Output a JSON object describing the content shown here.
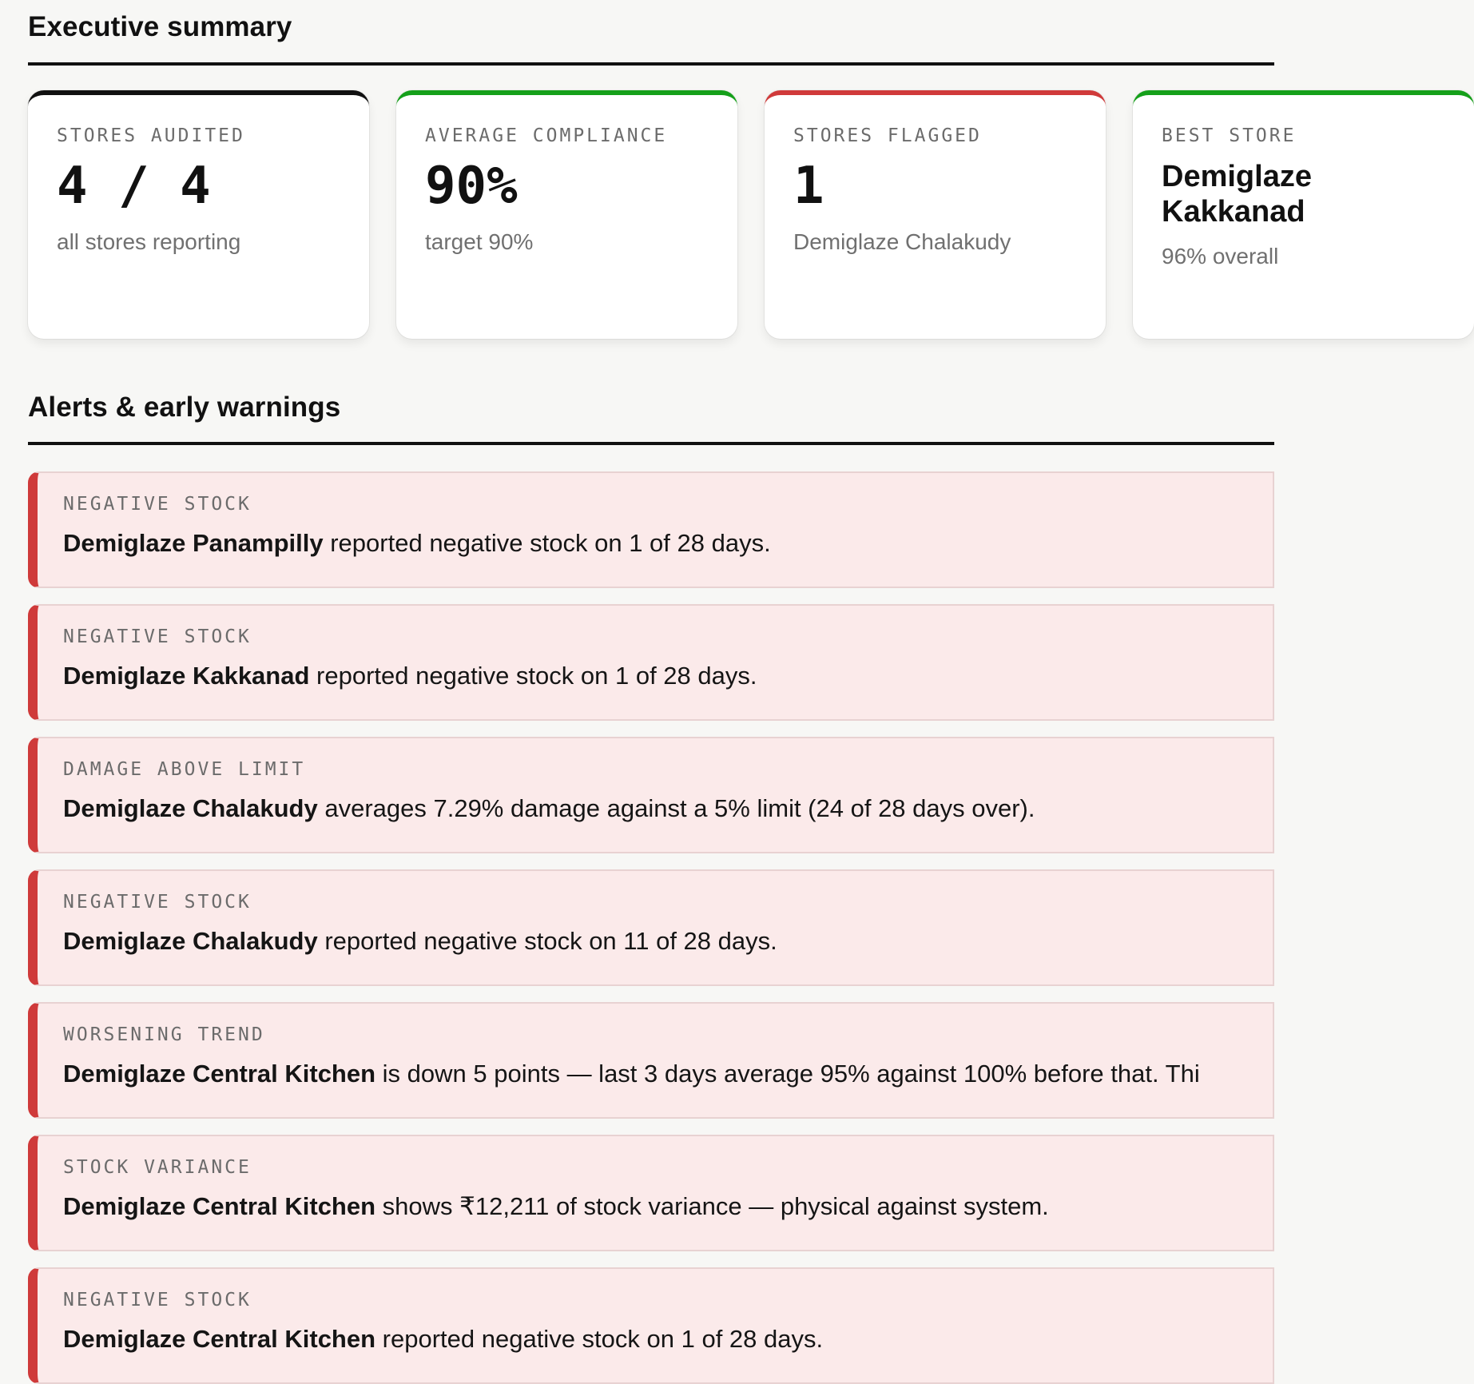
{
  "summary": {
    "title": "Executive summary",
    "cards": [
      {
        "label": "STORES AUDITED",
        "value": "4 / 4",
        "sub": "all stores reporting"
      },
      {
        "label": "AVERAGE COMPLIANCE",
        "value": "90%",
        "sub": "target 90%"
      },
      {
        "label": "STORES FLAGGED",
        "value": "1",
        "sub": "Demiglaze Chalakudy"
      },
      {
        "label": "BEST STORE",
        "value": "Demiglaze Kakkanad",
        "sub": "96% overall"
      }
    ]
  },
  "alerts": {
    "title": "Alerts & early warnings",
    "items": [
      {
        "tag": "NEGATIVE STOCK",
        "store": "Demiglaze Panampilly",
        "text": " reported negative stock on 1 of 28 days."
      },
      {
        "tag": "NEGATIVE STOCK",
        "store": "Demiglaze Kakkanad",
        "text": " reported negative stock on 1 of 28 days."
      },
      {
        "tag": "DAMAGE ABOVE LIMIT",
        "store": "Demiglaze Chalakudy",
        "text": " averages 7.29% damage against a 5% limit (24 of 28 days over)."
      },
      {
        "tag": "NEGATIVE STOCK",
        "store": "Demiglaze Chalakudy",
        "text": " reported negative stock on 11 of 28 days."
      },
      {
        "tag": "WORSENING TREND",
        "store": "Demiglaze Central Kitchen",
        "text": " is down 5 points — last 3 days average 95% against 100% before that. Thi"
      },
      {
        "tag": "STOCK VARIANCE",
        "store": "Demiglaze Central Kitchen",
        "text": " shows ₹12,211 of stock variance — physical against system."
      },
      {
        "tag": "NEGATIVE STOCK",
        "store": "Demiglaze Central Kitchen",
        "text": " reported negative stock on 1 of 28 days."
      }
    ]
  },
  "colors": {
    "accent_neutral": "#111111",
    "accent_good": "#15a01a",
    "accent_bad": "#d03a3a",
    "alert_bg": "#fbeaea"
  }
}
